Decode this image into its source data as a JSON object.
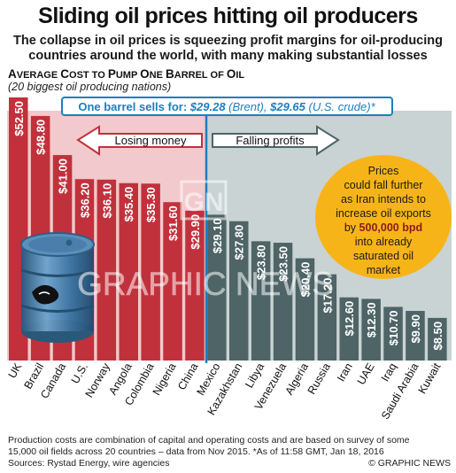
{
  "header": {
    "title": "Sliding oil prices hitting oil producers",
    "subtitle": "The collapse in oil prices is squeezing profit margins for oil-producing countries around the world, with many making substantial losses"
  },
  "chart_head": {
    "title_parts": [
      "A",
      "VERAGE ",
      "C",
      "OST TO ",
      "P",
      "UMP ",
      "O",
      "NE ",
      "B",
      "ARREL OF ",
      "O",
      "IL"
    ],
    "note": "(20 biggest oil producing nations)"
  },
  "price_banner": {
    "prefix": "One barrel sells for: ",
    "brent_value": "$29.28",
    "brent_label": " (Brent), ",
    "us_value": "$29.65",
    "us_label": " (U.S. crude)*"
  },
  "arrows": {
    "left": "Losing money",
    "right": "Falling profits"
  },
  "callout": {
    "line1": "Prices",
    "line2": "could fall further",
    "line3": "as Iran intends to",
    "line4": "increase oil exports",
    "line5_prefix": "by ",
    "line5_bold": "500,000 bpd",
    "line6": "into already",
    "line7": "saturated oil",
    "line8": "market"
  },
  "watermark": {
    "logo": "GN",
    "text": "GRAPHIC NEWS"
  },
  "chart_data": {
    "type": "bar",
    "title": "Average Cost to Pump One Barrel of Oil",
    "categories": [
      "UK",
      "Brazil",
      "Canada",
      "U.S.",
      "Norway",
      "Angola",
      "Colombia",
      "Nigeria",
      "China",
      "Mexico",
      "Kazakhstan",
      "Libya",
      "Venezuela",
      "Algeria",
      "Russia",
      "Iran",
      "UAE",
      "Iraq",
      "Saudi Arabia",
      "Kuwait"
    ],
    "values": [
      52.5,
      48.8,
      41.0,
      36.2,
      36.1,
      35.4,
      35.3,
      31.6,
      29.9,
      29.1,
      27.8,
      23.8,
      23.5,
      20.4,
      17.2,
      12.6,
      12.3,
      10.7,
      9.9,
      8.5
    ],
    "labels": [
      "$52.50",
      "$48.80",
      "$41.00",
      "$36.20",
      "$36.10",
      "$35.40",
      "$35.30",
      "$31.60",
      "$29.90",
      "$29.10",
      "$27.80",
      "$23.80",
      "$23.50",
      "$20.40",
      "$17.20",
      "$12.60",
      "$12.30",
      "$10.70",
      "$9.90",
      "$8.50"
    ],
    "reference_line": 29.28,
    "colors": {
      "losing": "#c1313c",
      "losing_bg": "#f2c9cc",
      "profit": "#4e6466",
      "profit_bg": "#c9d3d3",
      "line": "#1b7fbf"
    },
    "ylim": [
      0,
      55
    ]
  },
  "footer": {
    "line1": "Production costs are combination of capital and operating costs and are based on survey of some",
    "line2": "15,000 oil fields across 20 countries – data from Nov 2015.   *As of 11:58 GMT, Jan 18, 2016",
    "line3": "Sources: Rystad Energy, wire agencies",
    "credit": "© GRAPHIC NEWS"
  }
}
